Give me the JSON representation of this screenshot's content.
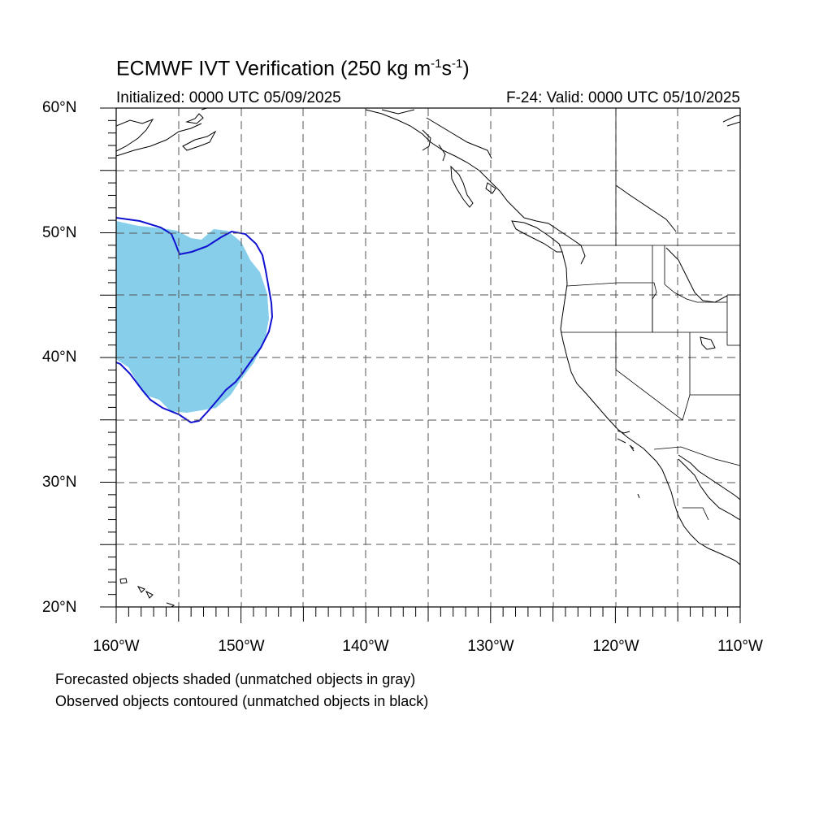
{
  "title": {
    "prefix": "ECMWF IVT Verification (250 kg m",
    "exp1": "-1",
    "mid": "s",
    "exp2": "-1",
    "suffix": ")"
  },
  "initialized": "Initialized: 0000 UTC 05/09/2025",
  "valid": "F-24: Valid: 0000 UTC 05/10/2025",
  "lat_labels": [
    "60°N",
    "50°N",
    "40°N",
    "30°N",
    "20°N"
  ],
  "lon_labels": [
    "160°W",
    "150°W",
    "140°W",
    "130°W",
    "120°W",
    "110°W"
  ],
  "notes": [
    "Forecasted objects shaded (unmatched objects in gray)",
    "Observed objects contoured (unmatched objects in black)"
  ],
  "colors": {
    "forecast_fill": "#87ceeb",
    "observed_contour": "#1010d0",
    "coastline": "#000000",
    "grid": "#555555"
  },
  "map_extent": {
    "lon_min": -160,
    "lon_max": -110,
    "lat_min": 20,
    "lat_max": 60
  }
}
